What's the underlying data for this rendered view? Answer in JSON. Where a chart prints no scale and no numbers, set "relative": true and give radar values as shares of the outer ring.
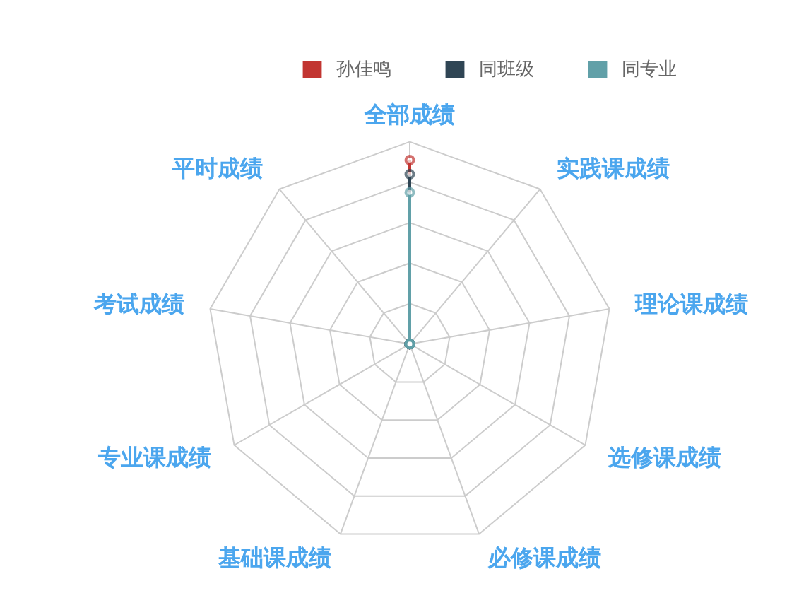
{
  "chart_data": {
    "type": "radar",
    "relative": true,
    "legend": "top right",
    "marker": "circle",
    "categories": [
      "全部成绩",
      "实践课成绩",
      "理论课成绩",
      "选修课成绩",
      "必修课成绩",
      "基础课成绩",
      "专业课成绩",
      "考试成绩",
      "平时成绩"
    ],
    "series": [
      {
        "name": "孙佳鸣",
        "color": "#c23531",
        "values": [
          0.91,
          0,
          0,
          0,
          0,
          0,
          0,
          0,
          0
        ]
      },
      {
        "name": "同班级",
        "color": "#2f4554",
        "values": [
          0.84,
          0,
          0,
          0,
          0,
          0,
          0,
          0,
          0
        ]
      },
      {
        "name": "同专业",
        "color": "#61a0a8",
        "values": [
          0.75,
          0,
          0,
          0,
          0,
          0,
          0,
          0,
          0
        ]
      }
    ]
  }
}
